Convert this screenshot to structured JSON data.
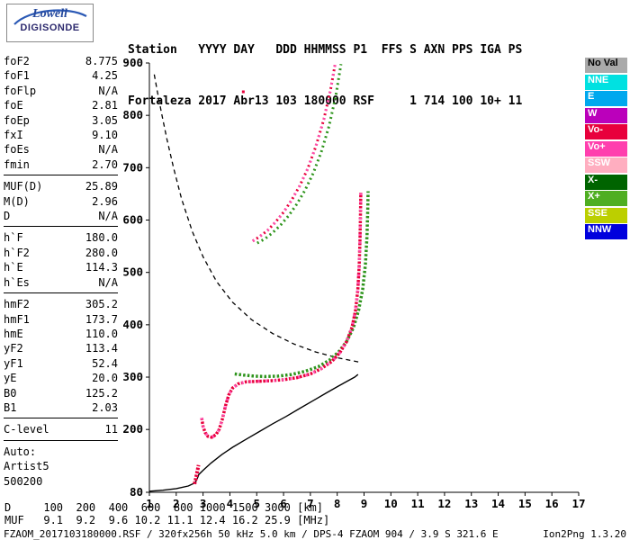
{
  "logo": {
    "brand": "Lowell",
    "product": "DIGISONDE"
  },
  "header": {
    "line1": "Station   YYYY DAY   DDD HHMMSS P1  FFS S AXN PPS IGA PS",
    "line2": "Fortaleza 2017 Abr13 103 180000 RSF     1 714 100 10+ 11"
  },
  "params": {
    "groups": [
      {
        "rows": [
          {
            "label": "foF2",
            "value": "8.775"
          },
          {
            "label": "foF1",
            "value": "4.25"
          },
          {
            "label": "foFlp",
            "value": "N/A"
          },
          {
            "label": "foE",
            "value": "2.81"
          },
          {
            "label": "foEp",
            "value": "3.05"
          },
          {
            "label": "fxI",
            "value": "9.10"
          },
          {
            "label": "foEs",
            "value": "N/A"
          },
          {
            "label": "fmin",
            "value": "2.70"
          }
        ]
      },
      {
        "rows": [
          {
            "label": "MUF(D)",
            "value": "25.89"
          },
          {
            "label": "M(D)",
            "value": "2.96"
          },
          {
            "label": "D",
            "value": "N/A"
          }
        ]
      },
      {
        "rows": [
          {
            "label": "h`F",
            "value": "180.0"
          },
          {
            "label": "h`F2",
            "value": "280.0"
          },
          {
            "label": "h`E",
            "value": "114.3"
          },
          {
            "label": "h`Es",
            "value": "N/A"
          }
        ]
      },
      {
        "rows": [
          {
            "label": "hmF2",
            "value": "305.2"
          },
          {
            "label": "hmF1",
            "value": "173.7"
          },
          {
            "label": "hmE",
            "value": "110.0"
          },
          {
            "label": "yF2",
            "value": "113.4"
          },
          {
            "label": "yF1",
            "value": "52.4"
          },
          {
            "label": "yE",
            "value": "20.0"
          },
          {
            "label": "B0",
            "value": "125.2"
          },
          {
            "label": "B1",
            "value": "2.03"
          }
        ]
      },
      {
        "rows": [
          {
            "label": "C-level",
            "value": "11"
          }
        ]
      }
    ],
    "footer": [
      "Auto:",
      "Artist5",
      "500200"
    ]
  },
  "legend": {
    "items": [
      {
        "label": "No Val",
        "color": "#aaaaaa",
        "text": "#000000"
      },
      {
        "label": "NNE",
        "color": "#00e1e1",
        "text": "#ffffff"
      },
      {
        "label": "E",
        "color": "#00a8ee",
        "text": "#ffffff"
      },
      {
        "label": "W",
        "color": "#bb00bb",
        "text": "#ffffff"
      },
      {
        "label": "Vo-",
        "color": "#e8003c",
        "text": "#ffffff"
      },
      {
        "label": "Vo+",
        "color": "#ff3fae",
        "text": "#ffffff"
      },
      {
        "label": "SSW",
        "color": "#ffaec0",
        "text": "#ffffff"
      },
      {
        "label": "X-",
        "color": "#006400",
        "text": "#ffffff"
      },
      {
        "label": "X+",
        "color": "#4fae22",
        "text": "#ffffff"
      },
      {
        "label": "SSE",
        "color": "#bccf00",
        "text": "#ffffff"
      },
      {
        "label": "NNW",
        "color": "#0000dd",
        "text": "#ffffff"
      }
    ]
  },
  "chart_data": {
    "type": "scatter",
    "title": "",
    "xlabel": "",
    "ylabel": "",
    "xlim": [
      1,
      17
    ],
    "ylim": [
      80,
      900
    ],
    "x_ticks": [
      1,
      2,
      3,
      4,
      5,
      6,
      7,
      8,
      9,
      10,
      11,
      12,
      13,
      14,
      15,
      16,
      17
    ],
    "y_ticks": [
      900,
      800,
      700,
      600,
      500,
      400,
      300,
      200,
      80
    ],
    "grid": false,
    "series": [
      {
        "name": "transmission-curve",
        "color": "#000000",
        "width": 1.3,
        "dash": "5 4",
        "points": [
          [
            1.18,
            878
          ],
          [
            1.3,
            845
          ],
          [
            1.45,
            805
          ],
          [
            1.65,
            755
          ],
          [
            1.9,
            700
          ],
          [
            2.2,
            640
          ],
          [
            2.6,
            578
          ],
          [
            3.0,
            530
          ],
          [
            3.5,
            483
          ],
          [
            4.1,
            443
          ],
          [
            4.8,
            410
          ],
          [
            5.6,
            383
          ],
          [
            6.4,
            363
          ],
          [
            7.2,
            348
          ],
          [
            8.0,
            337
          ],
          [
            8.8,
            329
          ]
        ]
      },
      {
        "name": "true-height-profile",
        "color": "#000000",
        "width": 1.4,
        "dash": "",
        "points": [
          [
            1.0,
            82
          ],
          [
            1.5,
            84
          ],
          [
            2.0,
            87
          ],
          [
            2.45,
            92
          ],
          [
            2.7,
            98
          ],
          [
            2.78,
            106
          ],
          [
            2.84,
            114
          ],
          [
            3.0,
            122
          ],
          [
            3.3,
            136
          ],
          [
            3.7,
            152
          ],
          [
            4.1,
            166
          ],
          [
            4.6,
            181
          ],
          [
            5.1,
            196
          ],
          [
            5.6,
            211
          ],
          [
            6.1,
            225
          ],
          [
            6.6,
            240
          ],
          [
            7.1,
            255
          ],
          [
            7.6,
            270
          ],
          [
            8.05,
            283
          ],
          [
            8.4,
            293
          ],
          [
            8.65,
            300
          ],
          [
            8.775,
            305
          ]
        ]
      },
      {
        "name": "f-trace-x",
        "color": "#2e941c",
        "width": 3.5,
        "dash": "2.5 2.2",
        "points": [
          [
            4.18,
            306
          ],
          [
            4.5,
            304
          ],
          [
            4.9,
            302
          ],
          [
            5.3,
            301
          ],
          [
            5.8,
            302
          ],
          [
            6.3,
            305
          ],
          [
            6.8,
            311
          ],
          [
            7.3,
            320
          ],
          [
            7.7,
            332
          ],
          [
            8.05,
            348
          ],
          [
            8.35,
            368
          ],
          [
            8.6,
            394
          ],
          [
            8.8,
            428
          ],
          [
            8.95,
            468
          ],
          [
            9.05,
            515
          ],
          [
            9.11,
            570
          ],
          [
            9.14,
            625
          ],
          [
            9.15,
            655
          ]
        ]
      },
      {
        "name": "f-trace-o",
        "color": "#e8003c",
        "width": 3.5,
        "dash": "2.5 1.6",
        "points": [
          [
            2.95,
            222
          ],
          [
            3.0,
            206
          ],
          [
            3.08,
            194
          ],
          [
            3.18,
            187
          ],
          [
            3.32,
            185
          ],
          [
            3.48,
            190
          ],
          [
            3.6,
            200
          ],
          [
            3.72,
            220
          ],
          [
            3.84,
            246
          ],
          [
            3.96,
            266
          ],
          [
            4.1,
            279
          ],
          [
            4.3,
            287
          ],
          [
            4.6,
            291
          ],
          [
            5.0,
            292
          ],
          [
            5.5,
            293
          ],
          [
            6.0,
            295
          ],
          [
            6.5,
            299
          ],
          [
            7.0,
            306
          ],
          [
            7.4,
            316
          ],
          [
            7.8,
            330
          ],
          [
            8.1,
            347
          ],
          [
            8.35,
            368
          ],
          [
            8.55,
            395
          ],
          [
            8.68,
            427
          ],
          [
            8.77,
            467
          ],
          [
            8.82,
            512
          ],
          [
            8.85,
            562
          ],
          [
            8.87,
            618
          ],
          [
            8.88,
            652
          ]
        ]
      },
      {
        "name": "f-trace-o-pink-overlay",
        "color": "#ff4fae",
        "width": 3.5,
        "dash": "2 7",
        "points_ref": "f-trace-o"
      },
      {
        "name": "second-hop-x",
        "color": "#2e941c",
        "width": 3,
        "dash": "2 3.5",
        "points": [
          [
            5.02,
            556
          ],
          [
            5.3,
            564
          ],
          [
            5.6,
            576
          ],
          [
            5.9,
            591
          ],
          [
            6.2,
            609
          ],
          [
            6.5,
            631
          ],
          [
            6.8,
            657
          ],
          [
            7.1,
            689
          ],
          [
            7.4,
            729
          ],
          [
            7.7,
            780
          ],
          [
            7.95,
            838
          ],
          [
            8.14,
            898
          ]
        ]
      },
      {
        "name": "second-hop-o",
        "color": "#e8003c",
        "width": 3,
        "dash": "2 3",
        "points": [
          [
            4.85,
            560
          ],
          [
            5.1,
            568
          ],
          [
            5.4,
            580
          ],
          [
            5.7,
            596
          ],
          [
            6.0,
            615
          ],
          [
            6.3,
            638
          ],
          [
            6.6,
            665
          ],
          [
            6.9,
            698
          ],
          [
            7.2,
            740
          ],
          [
            7.5,
            792
          ],
          [
            7.75,
            848
          ],
          [
            7.93,
            900
          ]
        ]
      },
      {
        "name": "second-hop-pink-overlay",
        "color": "#ff4fae",
        "width": 3,
        "dash": "2 8",
        "points_ref": "second-hop-o"
      },
      {
        "name": "e-trace",
        "color": "#e8003c",
        "width": 4,
        "dash": "2.5 1.5",
        "points": [
          [
            2.68,
            96
          ],
          [
            2.72,
            104
          ],
          [
            2.76,
            114
          ],
          [
            2.8,
            124
          ],
          [
            2.83,
            132
          ]
        ]
      }
    ],
    "scatter": [
      {
        "x": 4.5,
        "y": 845,
        "color": "#e8003c",
        "size": 3
      }
    ]
  },
  "bottom": {
    "rows": [
      {
        "label": "D",
        "values": [
          "100",
          "200",
          "400",
          "600",
          "800",
          "1000",
          "1500",
          "3000"
        ],
        "unit": "[km]"
      },
      {
        "label": "MUF",
        "values": [
          "9.1",
          "9.2",
          "9.6",
          "10.2",
          "11.1",
          "12.4",
          "16.2",
          "25.9"
        ],
        "unit": "[MHz]"
      }
    ]
  },
  "status": {
    "left": "FZAOM_2017103180000.RSF / 320fx256h 50 kHz 5.0 km / DPS-4 FZAOM 904 / 3.9 S 321.6 E",
    "right": "Ion2Png 1.3.20"
  }
}
